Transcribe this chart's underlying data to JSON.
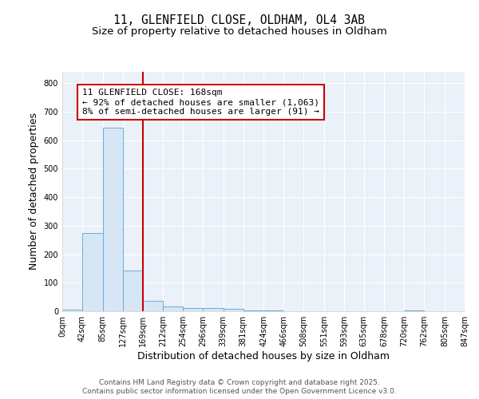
{
  "title1": "11, GLENFIELD CLOSE, OLDHAM, OL4 3AB",
  "title2": "Size of property relative to detached houses in Oldham",
  "xlabel": "Distribution of detached houses by size in Oldham",
  "ylabel": "Number of detached properties",
  "bin_edges": [
    0,
    42,
    85,
    127,
    169,
    212,
    254,
    296,
    339,
    381,
    424,
    466,
    508,
    551,
    593,
    635,
    678,
    720,
    762,
    805,
    847
  ],
  "bar_heights": [
    7,
    275,
    645,
    142,
    37,
    18,
    12,
    10,
    8,
    4,
    2,
    1,
    0,
    0,
    0,
    0,
    0,
    3,
    0,
    0
  ],
  "bar_color": "#d6e6f5",
  "bar_edge_color": "#6aaed6",
  "property_line_x": 169,
  "property_line_color": "#cc0000",
  "annotation_text": "11 GLENFIELD CLOSE: 168sqm\n← 92% of detached houses are smaller (1,063)\n8% of semi-detached houses are larger (91) →",
  "annotation_box_color": "#ffffff",
  "annotation_box_edge_color": "#cc0000",
  "ylim": [
    0,
    840
  ],
  "yticks": [
    0,
    100,
    200,
    300,
    400,
    500,
    600,
    700,
    800
  ],
  "tick_labels": [
    "0sqm",
    "42sqm",
    "85sqm",
    "127sqm",
    "169sqm",
    "212sqm",
    "254sqm",
    "296sqm",
    "339sqm",
    "381sqm",
    "424sqm",
    "466sqm",
    "508sqm",
    "551sqm",
    "593sqm",
    "635sqm",
    "678sqm",
    "720sqm",
    "762sqm",
    "805sqm",
    "847sqm"
  ],
  "footer1": "Contains HM Land Registry data © Crown copyright and database right 2025.",
  "footer2": "Contains public sector information licensed under the Open Government Licence v3.0.",
  "bg_color": "#ffffff",
  "plot_bg_color": "#eaf1f9",
  "grid_color": "#ffffff",
  "title_fontsize": 10.5,
  "subtitle_fontsize": 9.5,
  "axis_fontsize": 9,
  "tick_fontsize": 7,
  "footer_fontsize": 6.5,
  "annotation_fontsize": 8
}
